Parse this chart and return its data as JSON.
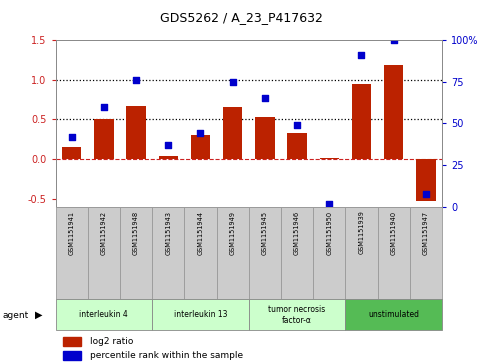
{
  "title": "GDS5262 / A_23_P417632",
  "samples": [
    "GSM1151941",
    "GSM1151942",
    "GSM1151948",
    "GSM1151943",
    "GSM1151944",
    "GSM1151949",
    "GSM1151945",
    "GSM1151946",
    "GSM1151950",
    "GSM1151939",
    "GSM1151940",
    "GSM1151947"
  ],
  "log2_ratio": [
    0.15,
    0.5,
    0.67,
    0.04,
    0.3,
    0.66,
    0.53,
    0.33,
    0.02,
    0.95,
    1.19,
    -0.53
  ],
  "percentile_rank": [
    42,
    60,
    76,
    37,
    44,
    75,
    65,
    49,
    2,
    91,
    100,
    8
  ],
  "agents": [
    {
      "label": "interleukin 4",
      "start": 0,
      "end": 2,
      "color": "#ccffcc"
    },
    {
      "label": "interleukin 13",
      "start": 3,
      "end": 5,
      "color": "#ccffcc"
    },
    {
      "label": "tumor necrosis\nfactor-α",
      "start": 6,
      "end": 8,
      "color": "#ccffcc"
    },
    {
      "label": "unstimulated",
      "start": 9,
      "end": 11,
      "color": "#55bb55"
    }
  ],
  "bar_color": "#bb2200",
  "dot_color": "#0000cc",
  "ylim_left": [
    -0.6,
    1.5
  ],
  "ylim_right": [
    0,
    100
  ],
  "yticks_left": [
    -0.5,
    0.0,
    0.5,
    1.0,
    1.5
  ],
  "yticks_right": [
    0,
    25,
    50,
    75,
    100
  ],
  "background_color": "#ffffff",
  "plot_bg": "#ffffff",
  "box_color": "#cccccc",
  "box_edge": "#999999"
}
